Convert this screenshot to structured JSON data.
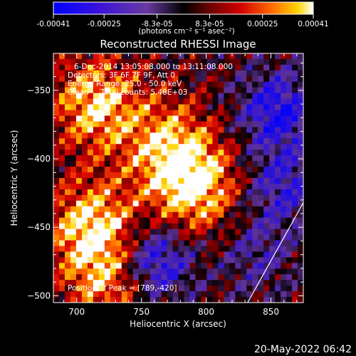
{
  "colorbar": {
    "tick_labels": [
      "-0.00041",
      "-0.00025",
      "-8.3e-05",
      "8.3e-05",
      "0.00025",
      "0.00041"
    ],
    "tick_values": [
      -0.00041,
      -0.00025,
      -8.3e-05,
      8.3e-05,
      0.00025,
      0.00041
    ],
    "range": [
      -0.00041,
      0.00041
    ],
    "units_label": "(photons cm⁻² s⁻¹ asec⁻²)"
  },
  "chart_data": {
    "type": "heatmap",
    "title": "Reconstructed RHESSI Image",
    "xlabel": "Heliocentric X (arcsec)",
    "ylabel": "Heliocentric Y (arcsec)",
    "xlim": [
      682,
      875
    ],
    "ylim": [
      -505,
      -323
    ],
    "x_ticks": [
      700,
      750,
      800,
      850
    ],
    "x_tick_labels": [
      "700",
      "750",
      "800",
      "850"
    ],
    "y_ticks": [
      -350,
      -400,
      -450,
      -500
    ],
    "y_tick_labels": [
      "−350",
      "−400",
      "−450",
      "−500"
    ],
    "annotations": [
      "6-Dec-2014 13:05:08.000 to 13:11:08.000",
      "Detectors: 3F 6F 7F 9F, Att 0",
      "Energy Range: 25.0 - 50.0 keV",
      "Clean     Total counts: 5.48E+03"
    ],
    "peak_label": "Position of Peak = [789,-420]",
    "peak_position": [
      789,
      -420
    ],
    "bright_sources": [
      {
        "x": 715,
        "y": -360,
        "level": 0.9
      },
      {
        "x": 790,
        "y": -420,
        "level": 1.0
      },
      {
        "x": 712,
        "y": -450,
        "level": 0.95
      },
      {
        "x": 770,
        "y": -390,
        "level": 0.7
      },
      {
        "x": 725,
        "y": -490,
        "level": 0.65
      }
    ],
    "dim_regions": [
      {
        "x": 760,
        "y": -475,
        "level": -0.8
      },
      {
        "x": 855,
        "y": -365,
        "level": -0.75
      },
      {
        "x": 860,
        "y": -420,
        "level": -0.55
      },
      {
        "x": 840,
        "y": -470,
        "level": -0.35
      }
    ],
    "limb_arc": {
      "x_start": 832,
      "y_start": -505,
      "x_end": 875,
      "y_end": -432
    }
  },
  "footer": {
    "timestamp": "20-May-2022 06:42"
  }
}
